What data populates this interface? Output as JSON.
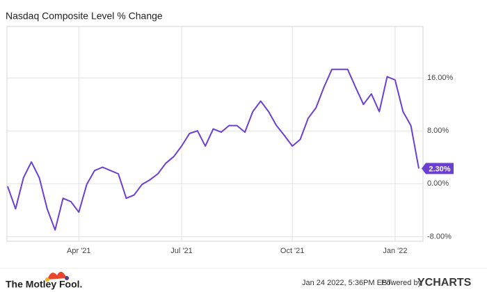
{
  "chart_data": {
    "type": "line",
    "title": "Nasdaq Composite Level % Change",
    "categories": [
      null,
      null,
      null,
      null,
      null,
      null,
      null,
      null,
      null,
      "Apr '21",
      null,
      null,
      null,
      null,
      null,
      null,
      null,
      null,
      null,
      null,
      null,
      null,
      "Jul '21",
      null,
      null,
      null,
      null,
      null,
      null,
      null,
      null,
      null,
      null,
      null,
      null,
      null,
      "Oct '21",
      null,
      null,
      null,
      null,
      null,
      null,
      null,
      null,
      null,
      null,
      null,
      null,
      "Jan '22",
      null,
      null,
      null
    ],
    "values": [
      -0.4,
      -3.8,
      0.9,
      3.3,
      0.9,
      -3.8,
      -7.0,
      -2.2,
      -2.7,
      -4.3,
      -0.1,
      2.0,
      2.5,
      2.0,
      1.5,
      -2.2,
      -1.7,
      -0.1,
      0.6,
      1.5,
      3.1,
      4.1,
      5.7,
      7.6,
      8.0,
      5.7,
      8.3,
      7.8,
      8.8,
      8.8,
      7.8,
      10.9,
      12.5,
      10.9,
      8.8,
      7.3,
      5.7,
      6.7,
      9.9,
      11.5,
      14.6,
      17.3,
      17.3,
      17.3,
      14.6,
      12.0,
      13.6,
      10.9,
      16.2,
      15.7,
      10.9,
      8.8,
      2.3
    ],
    "value_labels": [
      null,
      null,
      null,
      null,
      null,
      null,
      null,
      null,
      null,
      null,
      null,
      null,
      null,
      null,
      null,
      null,
      null,
      null,
      null,
      null,
      null,
      null,
      null,
      null,
      null,
      null,
      null,
      null,
      null,
      null,
      null,
      null,
      null,
      null,
      null,
      null,
      null,
      null,
      null,
      null,
      null,
      null,
      null,
      null,
      null,
      null,
      null,
      null,
      null,
      null,
      null,
      null,
      "2.30%"
    ],
    "color": "#6b3fd4",
    "ylim": [
      -8.7,
      23.8
    ],
    "yticks": [
      {
        "value": -8,
        "label": "-8.00%"
      },
      {
        "value": 0,
        "label": "0.00%"
      },
      {
        "value": 8,
        "label": "8.00%"
      },
      {
        "value": 16,
        "label": "16.00%"
      }
    ],
    "grid": true
  },
  "footer": {
    "brand": "The Motley Fool.",
    "timestamp": "Jan 24 2022, 5:36PM EST.",
    "powered": "Powered by",
    "provider": "YCHARTS"
  }
}
